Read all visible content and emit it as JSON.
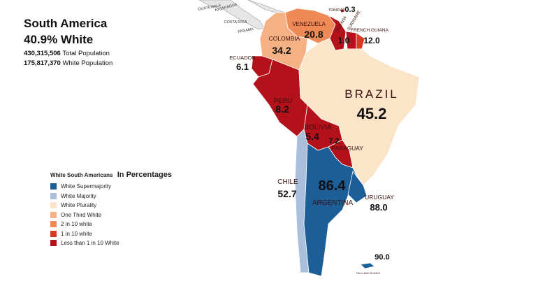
{
  "header": {
    "title": "South America",
    "subtitle": "40.9% White",
    "total_population": "430,315,506",
    "total_label": "Total Population",
    "white_population": "175,817,370",
    "white_label": "White Population"
  },
  "legend": {
    "title": "White South Americans",
    "subtitle": "In Percentages",
    "items": [
      {
        "label": "White Supermajority",
        "color": "#1c5f98"
      },
      {
        "label": "White Majority",
        "color": "#a9bfdc"
      },
      {
        "label": "White Plurality",
        "color": "#fbe4c8"
      },
      {
        "label": "One Third White",
        "color": "#f5b183"
      },
      {
        "label": "2 in 10 white",
        "color": "#ef8a56"
      },
      {
        "label": "1 in 10 white",
        "color": "#d63a24"
      },
      {
        "label": "Less than 1 in 10 White",
        "color": "#b4121b"
      }
    ]
  },
  "countries": [
    {
      "name": "VENEZUELA",
      "value": "20.8",
      "color": "#ef8a56"
    },
    {
      "name": "COLOMBIA",
      "value": "34.2",
      "color": "#f5b183"
    },
    {
      "name": "GUYANA",
      "value": "1.0",
      "color": "#b4121b"
    },
    {
      "name": "SURINAME",
      "value": null,
      "color": "#b4121b"
    },
    {
      "name": "FRENCH GUIANA",
      "value": "12.0",
      "color": "#d63a24"
    },
    {
      "name": "ECUADOR",
      "value": "6.1",
      "color": "#b4121b"
    },
    {
      "name": "PERU",
      "value": "8.2",
      "color": "#b4121b"
    },
    {
      "name": "BRAZIL",
      "value": "45.2",
      "color": "#fbe4c8"
    },
    {
      "name": "BOLIVIA",
      "value": "5.4",
      "color": "#b4121b"
    },
    {
      "name": "PARAGUAY",
      "value": "7.2",
      "color": "#b4121b"
    },
    {
      "name": "CHILE",
      "value": "52.7",
      "color": "#a9bfdc"
    },
    {
      "name": "ARGENTINA",
      "value": "86.4",
      "color": "#1c5f98"
    },
    {
      "name": "URUGUAY",
      "value": "88.0",
      "color": "#1c5f98"
    },
    {
      "name": "FALKLAND ISLANDS",
      "value": "90.0",
      "color": "#1c5f98"
    },
    {
      "name": "TRINIDAD",
      "value": "0.3",
      "color": "#b4121b"
    }
  ],
  "other_labels": [
    "GUATEMALA",
    "NICARAGUA",
    "COSTA RICA",
    "PANAMA"
  ]
}
